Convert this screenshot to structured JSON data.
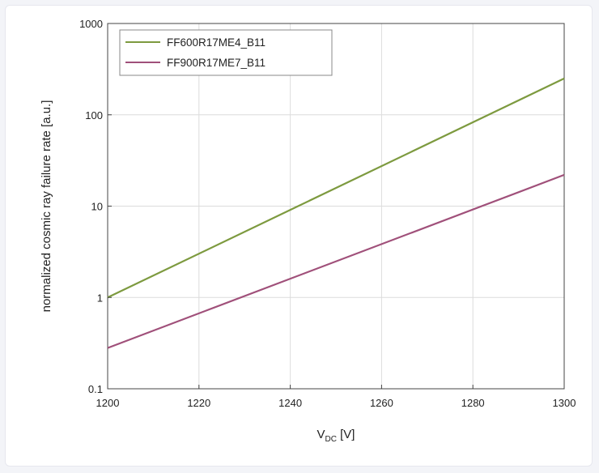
{
  "chart_data": {
    "type": "line",
    "title": "",
    "xlabel": {
      "main": "V",
      "sub": "DC",
      "unit": " [V]"
    },
    "ylabel": "normalized cosmic ray failure rate [a.u.]",
    "xlim": [
      1200,
      1300
    ],
    "ylim": [
      0.1,
      1000
    ],
    "yscale": "log",
    "grid": true,
    "legend_position": "top-left",
    "xticks": [
      "1200",
      "1220",
      "1240",
      "1260",
      "1280",
      "1300"
    ],
    "yticks": [
      "0.1",
      "1",
      "10",
      "100",
      "1000"
    ],
    "series": [
      {
        "name": "FF600R17ME4_B11",
        "color": "#7d9a3f",
        "x": [
          1200,
          1300
        ],
        "y": [
          1.0,
          250
        ]
      },
      {
        "name": "FF900R17ME7_B11",
        "color": "#a0507a",
        "x": [
          1200,
          1300
        ],
        "y": [
          0.28,
          22
        ]
      }
    ]
  }
}
